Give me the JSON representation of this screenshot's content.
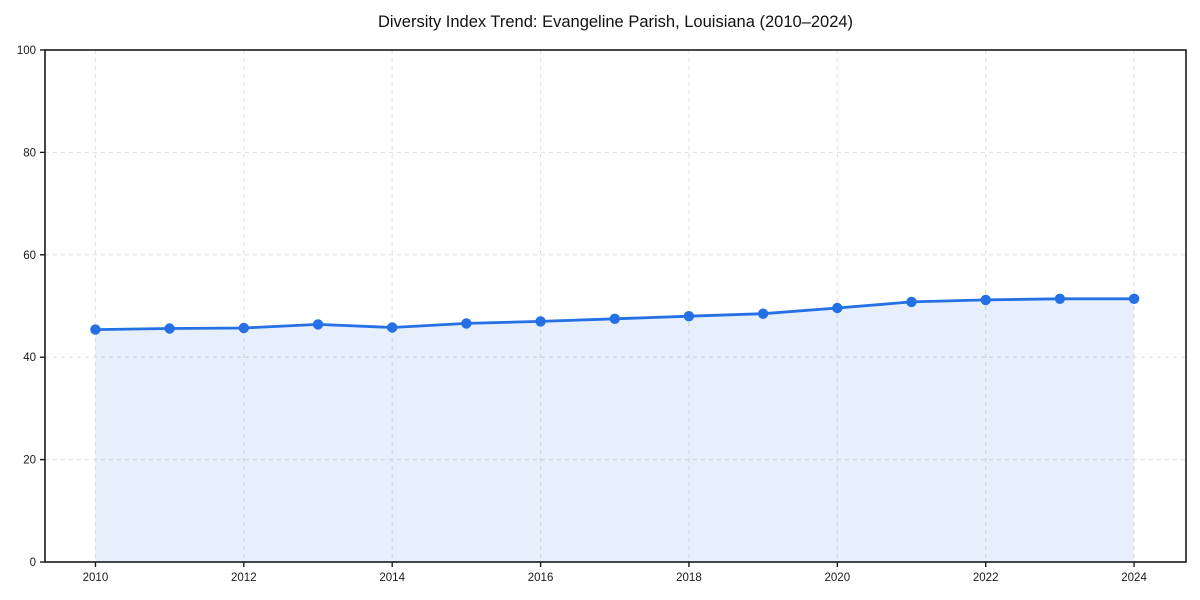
{
  "chart_data": {
    "type": "area",
    "title": "Diversity Index Trend: Evangeline Parish, Louisiana (2010–2024)",
    "x": [
      2010,
      2011,
      2012,
      2013,
      2014,
      2015,
      2016,
      2017,
      2018,
      2019,
      2020,
      2021,
      2022,
      2023,
      2024
    ],
    "values": [
      45.4,
      45.6,
      45.7,
      46.4,
      45.8,
      46.6,
      47.0,
      47.5,
      48.0,
      48.5,
      49.6,
      50.8,
      51.2,
      51.4,
      51.4
    ],
    "xlabel": "",
    "ylabel": "",
    "xlim": [
      2009.32,
      2024.7
    ],
    "ylim": [
      0,
      100
    ],
    "xticks": [
      2010,
      2012,
      2014,
      2016,
      2018,
      2020,
      2022,
      2024
    ],
    "yticks": [
      0,
      20,
      40,
      60,
      80,
      100
    ],
    "grid": true,
    "grid_style": "dashed",
    "legend": false,
    "marker": "circle",
    "colors": {
      "line": "#2470e4",
      "fill": "#2470e4",
      "fill_opacity": "0.11",
      "grid": "#e2e2e2",
      "axis": "#1a1a1a",
      "text": "#1a1a1a"
    }
  }
}
